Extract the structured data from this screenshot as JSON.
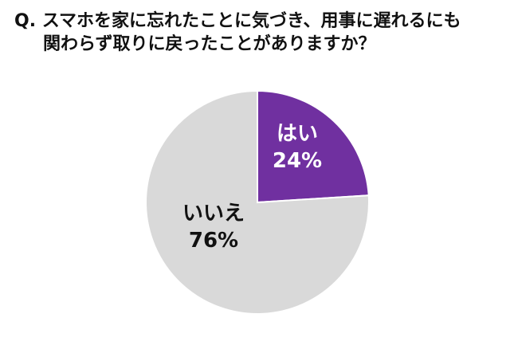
{
  "question": {
    "line1": "Q. スマホを家に忘れたことに気づき、用事に遅れるにも",
    "line2": "関わらず取りに戻ったことがありますか？"
  },
  "chart_data": {
    "type": "pie",
    "title": "Q. スマホを家に忘れたことに気づき、用事に遅れるにも関わらず取りに戻ったことがありますか？",
    "slices": [
      {
        "label": "はい",
        "value": 24,
        "display": "24%",
        "color": "#7030a0",
        "label_color": "#ffffff"
      },
      {
        "label": "いいえ",
        "value": 76,
        "display": "76%",
        "color": "#d9d9d9",
        "label_color": "#111111"
      }
    ],
    "start": "12 o'clock",
    "direction": "clockwise",
    "legend": "none"
  }
}
